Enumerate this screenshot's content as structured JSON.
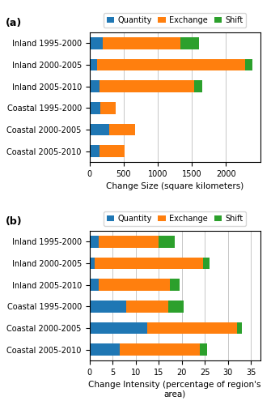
{
  "chart_data": [
    {
      "type": "bar",
      "orientation": "horizontal",
      "stacked": true,
      "title": "(a)",
      "categories": [
        "Inland 1995-2000",
        "Inland 2000-2005",
        "Inland 2005-2010",
        "Coastal 1995-2000",
        "Coastal 2000-2005",
        "Coastal 2005-2010"
      ],
      "series": [
        {
          "name": "Quantity",
          "values": [
            200,
            110,
            150,
            160,
            290,
            150
          ]
        },
        {
          "name": "Exchange",
          "values": [
            1130,
            2170,
            1380,
            230,
            380,
            360
          ]
        },
        {
          "name": "Shift",
          "values": [
            280,
            105,
            120,
            0,
            0,
            0
          ]
        }
      ],
      "xlabel": "Change Size (square kilometers)",
      "xlim": [
        0,
        2500
      ],
      "xticks": [
        0,
        500,
        1000,
        1500,
        2000
      ],
      "grid": true,
      "legend": "lower center"
    },
    {
      "type": "bar",
      "orientation": "horizontal",
      "stacked": true,
      "title": "(b)",
      "categories": [
        "Inland 1995-2000",
        "Inland 2000-2005",
        "Inland 2005-2010",
        "Coastal 1995-2000",
        "Coastal 2000-2005",
        "Coastal 2005-2010"
      ],
      "series": [
        {
          "name": "Quantity",
          "values": [
            2.0,
            1.2,
            2.0,
            8.0,
            12.5,
            6.5
          ]
        },
        {
          "name": "Exchange",
          "values": [
            13.0,
            23.5,
            15.5,
            9.0,
            19.5,
            17.5
          ]
        },
        {
          "name": "Shift",
          "values": [
            3.5,
            1.3,
            2.0,
            3.5,
            1.0,
            1.5
          ]
        }
      ],
      "xlabel": "Change Intensity (percentage of region's area)",
      "xlim": [
        0,
        37
      ],
      "xticks": [
        0,
        5,
        10,
        15,
        20,
        25,
        30,
        35
      ],
      "grid": true,
      "legend": "lower center"
    }
  ]
}
